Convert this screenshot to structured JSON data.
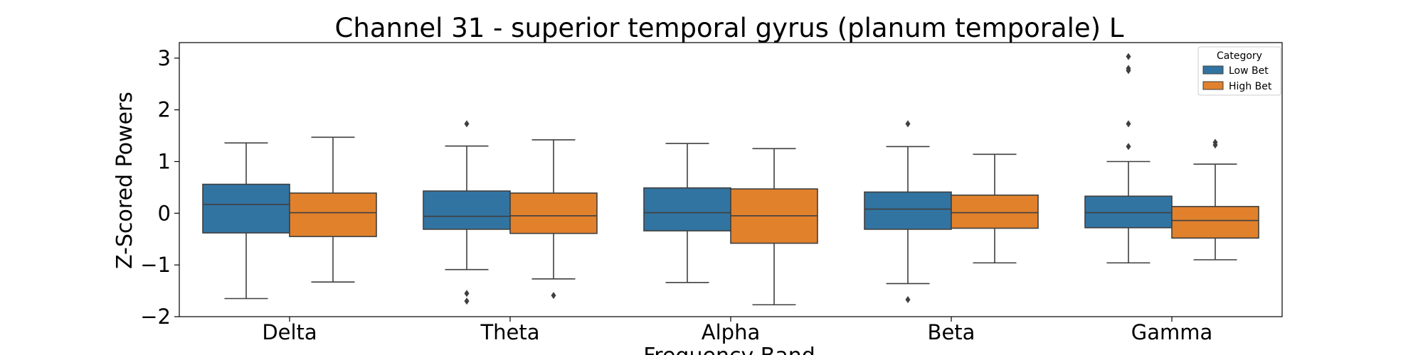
{
  "chart_data": {
    "type": "box",
    "title": "Channel 31 - superior temporal gyrus (planum temporale) L",
    "xlabel": "Frequency Band",
    "ylabel": "Z-Scored Powers",
    "ylim": [
      -2,
      3.3
    ],
    "yticks": [
      -2,
      -1,
      0,
      1,
      2,
      3
    ],
    "ytick_labels": [
      "−2",
      "−1",
      "0",
      "1",
      "2",
      "3"
    ],
    "categories": [
      "Delta",
      "Theta",
      "Alpha",
      "Beta",
      "Gamma"
    ],
    "legend": {
      "title": "Category",
      "position": "top-right"
    },
    "grid": false,
    "series": [
      {
        "name": "Low Bet",
        "color": "#3274a1",
        "boxes": [
          {
            "whislo": -1.65,
            "q1": -0.38,
            "med": 0.17,
            "q3": 0.56,
            "whishi": 1.36,
            "fliers": []
          },
          {
            "whislo": -1.09,
            "q1": -0.31,
            "med": -0.06,
            "q3": 0.43,
            "whishi": 1.3,
            "fliers": [
              1.73,
              -1.55,
              -1.7
            ]
          },
          {
            "whislo": -1.34,
            "q1": -0.34,
            "med": 0.01,
            "q3": 0.49,
            "whishi": 1.35,
            "fliers": []
          },
          {
            "whislo": -1.36,
            "q1": -0.31,
            "med": 0.08,
            "q3": 0.41,
            "whishi": 1.29,
            "fliers": [
              1.73,
              -1.67
            ]
          },
          {
            "whislo": -0.96,
            "q1": -0.28,
            "med": 0.01,
            "q3": 0.33,
            "whishi": 1.0,
            "fliers": [
              3.03,
              2.8,
              2.76,
              1.73,
              1.29
            ]
          }
        ]
      },
      {
        "name": "High Bet",
        "color": "#e1812c",
        "boxes": [
          {
            "whislo": -1.33,
            "q1": -0.45,
            "med": 0.01,
            "q3": 0.39,
            "whishi": 1.47,
            "fliers": []
          },
          {
            "whislo": -1.27,
            "q1": -0.39,
            "med": -0.05,
            "q3": 0.39,
            "whishi": 1.42,
            "fliers": [
              -1.59
            ]
          },
          {
            "whislo": -1.77,
            "q1": -0.58,
            "med": -0.05,
            "q3": 0.47,
            "whishi": 1.25,
            "fliers": []
          },
          {
            "whislo": -0.96,
            "q1": -0.29,
            "med": 0.01,
            "q3": 0.35,
            "whishi": 1.14,
            "fliers": []
          },
          {
            "whislo": -0.9,
            "q1": -0.48,
            "med": -0.14,
            "q3": 0.13,
            "whishi": 0.95,
            "fliers": [
              1.37,
              1.32
            ]
          }
        ]
      }
    ]
  }
}
